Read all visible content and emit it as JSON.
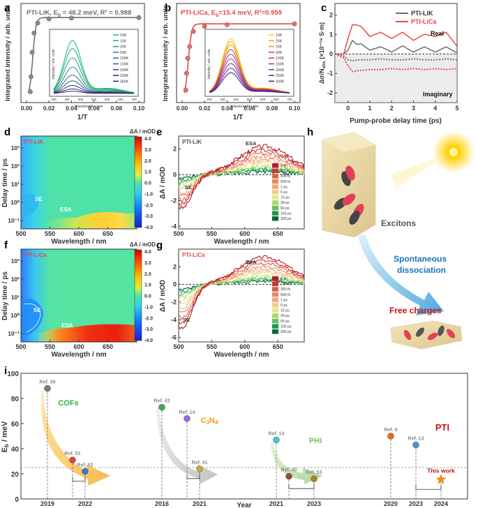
{
  "colors": {
    "li_k": "#6e6e6e",
    "li_ca": "#e8474a",
    "accent_blue": "#1c73b9",
    "accent_red": "#c41212",
    "cofs": "#2bb24c",
    "c3n4": "#f39800",
    "phi": "#7cc05c",
    "pti": "#c41212",
    "star": "#f08a1c"
  },
  "panel_labels": {
    "a": "a",
    "b": "b",
    "c": "c",
    "d": "d",
    "e": "e",
    "f": "f",
    "g": "g",
    "h": "h",
    "i": "i"
  },
  "chart_data": [
    {
      "id": "a",
      "type": "scatter",
      "title": "PTI-LiK, E_b = 48.2 meV, R² = 0.988",
      "title_parts": {
        "main": "PTI-LiK, E",
        "sub": "b",
        "rest": " = 48.2 meV, R² = 0.988"
      },
      "xlabel": "1/T",
      "ylabel": "Integrated intensity / arb. units",
      "xlim": [
        0,
        0.1
      ],
      "xticks": [
        "0.00",
        "0.02",
        "0.04",
        "0.06",
        "0.08",
        "0.10"
      ],
      "x": [
        0.0033,
        0.004,
        0.005,
        0.0067,
        0.01,
        0.02,
        0.04,
        0.1
      ],
      "y": [
        0.08,
        0.26,
        0.55,
        0.78,
        0.9,
        0.95,
        0.96,
        0.965
      ],
      "inset": {
        "xlabel": "Wavelength / nm",
        "ylabel": "Intensity / arb. units",
        "xticks": [
          "400",
          "450",
          "500",
          "550",
          "600",
          "650",
          "700"
        ],
        "legend": [
          "10K",
          "15K",
          "25K",
          "50K",
          "100K",
          "150K",
          "200K",
          "250K",
          "300K"
        ],
        "series_colors": [
          "#00c05a",
          "#1aa870",
          "#2a9480",
          "#2f8086",
          "#306b86",
          "#2f5482",
          "#2e3b7a",
          "#2a2a6e",
          "#481a6a"
        ],
        "peak_nm": 470,
        "peaks": [
          0.92,
          0.78,
          0.62,
          0.46,
          0.32,
          0.22,
          0.14,
          0.08,
          0.04
        ]
      }
    },
    {
      "id": "b",
      "type": "scatter",
      "title": "PTI-LiCa, E_b=15.4 meV, R²=0.959",
      "title_parts": {
        "main": "PTI-LiCa, E",
        "sub": "b",
        "rest": "=15.4 meV, R²=0.959"
      },
      "xlabel": "1/T",
      "ylabel": "Integrated intensity / arb. units",
      "xlim": [
        0,
        0.1
      ],
      "xticks": [
        "0.00",
        "0.02",
        "0.04",
        "0.06",
        "0.08",
        "0.10"
      ],
      "x": [
        0.0033,
        0.004,
        0.005,
        0.0067,
        0.01,
        0.02,
        0.04,
        0.1
      ],
      "y": [
        0.1,
        0.3,
        0.48,
        0.62,
        0.8,
        0.86,
        0.88,
        0.89
      ],
      "inset": {
        "xlabel": "Wavelength / nm",
        "ylabel": "Intensity / arb. units",
        "xticks": [
          "400",
          "450",
          "500",
          "550",
          "600",
          "650",
          "700"
        ],
        "legend": [
          "10K",
          "15K",
          "25K",
          "50K",
          "100K",
          "150K",
          "200K",
          "250K",
          "300K"
        ],
        "series_colors": [
          "#f8d000",
          "#f0b000",
          "#e39a00",
          "#c8327a",
          "#b0358a",
          "#953090",
          "#7a2a8e",
          "#5a2288",
          "#2b1a7a"
        ],
        "peak_nm": 480,
        "peaks": [
          0.95,
          0.9,
          0.84,
          0.76,
          0.68,
          0.6,
          0.52,
          0.44,
          0.36
        ]
      }
    },
    {
      "id": "c",
      "type": "line",
      "xlabel": "Pump-probe delay time (ps)",
      "ylabel": "Δσ/N_abs (×10⁻¹⁸ S·m)",
      "ylabel_text": "Δσ/N",
      "ylabel_sub": "abs",
      "ylabel_tail": " (×10⁻¹⁸ S·m)",
      "xlim": [
        -0.6,
        5
      ],
      "ylim": [
        -2.5,
        2.6
      ],
      "xticks": [
        "0",
        "1",
        "2",
        "3",
        "4",
        "5"
      ],
      "yticks": [
        "-2",
        "-1",
        "0",
        "1",
        "2"
      ],
      "legend": [
        "PTI-LiK",
        "PTI-LiCa"
      ],
      "annotations": [
        "Real",
        "Imaginary"
      ],
      "series": [
        {
          "name": "PTI-LiK real",
          "x": [
            -0.6,
            -0.2,
            0,
            0.2,
            0.4,
            0.6,
            1,
            1.5,
            2,
            2.5,
            3,
            3.5,
            4,
            4.5,
            5
          ],
          "values": [
            0,
            0,
            0.2,
            0.7,
            0.6,
            0.4,
            0.3,
            0.25,
            0.2,
            0.3,
            0.2,
            0.25,
            0.2,
            0.25,
            0.15
          ]
        },
        {
          "name": "PTI-LiCa real",
          "x": [
            -0.6,
            -0.2,
            0,
            0.2,
            0.4,
            0.6,
            1,
            1.5,
            2,
            2.5,
            3,
            3.5,
            4,
            4.5,
            5
          ],
          "values": [
            0,
            0,
            0.8,
            1.5,
            1.6,
            1.3,
            1,
            1,
            0.9,
            1,
            0.8,
            0.9,
            1,
            1,
            0.5
          ]
        },
        {
          "name": "PTI-LiK imaginary",
          "x": [
            -0.6,
            -0.2,
            0,
            0.2,
            0.5,
            1,
            1.5,
            2,
            2.5,
            3,
            3.5,
            4,
            4.5,
            5
          ],
          "values": [
            0,
            -0.1,
            -0.3,
            -0.35,
            -0.3,
            -0.3,
            -0.25,
            -0.3,
            -0.3,
            -0.25,
            -0.3,
            -0.3,
            -0.25,
            -0.3
          ]
        },
        {
          "name": "PTI-LiCa imaginary",
          "x": [
            -0.6,
            -0.2,
            0,
            0.2,
            0.5,
            1,
            1.5,
            2,
            2.5,
            3,
            3.5,
            4,
            4.5,
            5
          ],
          "values": [
            0,
            -0.2,
            -0.6,
            -0.9,
            -0.85,
            -0.8,
            -0.8,
            -0.75,
            -0.8,
            -0.75,
            -0.8,
            -0.75,
            -0.8,
            -0.75
          ]
        }
      ]
    },
    {
      "id": "d",
      "type": "heatmap",
      "sample": "PTI-LiK",
      "xlabel": "Wavelength / nm",
      "ylabel": "Delay time / ps",
      "xlim": [
        500,
        700
      ],
      "xticks": [
        "500",
        "550",
        "600",
        "650"
      ],
      "yticks": [
        "10⁻¹",
        "10⁰",
        "10¹",
        "10²",
        "10³"
      ],
      "colorbar": {
        "title": "ΔA / mOD",
        "ticks": [
          "4.0",
          "3.0",
          "2.0",
          "1.0",
          "0.0",
          "-1.0",
          "-2.0",
          "-3.0",
          "-4.0"
        ],
        "range": [
          -4,
          4
        ]
      },
      "annotations": [
        "SE",
        "ESA"
      ]
    },
    {
      "id": "e",
      "type": "line",
      "sample": "PTI-LiK",
      "xlabel": "Wavelength / nm",
      "ylabel": "ΔA / mOD",
      "xlim": [
        500,
        690
      ],
      "ylim": [
        -4.2,
        3
      ],
      "xticks": [
        "500",
        "550",
        "600",
        "650"
      ],
      "yticks": [
        "-4",
        "-2",
        "0",
        "2"
      ],
      "annotations": [
        "ESA",
        "SE"
      ],
      "legend": [
        "6 fs",
        "150 fs",
        "300 fs",
        "600 fs",
        "1 ps",
        "5 ps",
        "15 ps",
        "30 ps",
        "60 ps",
        "150 ps",
        "300 ps"
      ],
      "series_colors": [
        "#b2182b",
        "#c8382f",
        "#d6604d",
        "#e48a60",
        "#f4a582",
        "#f5c98e",
        "#d9ef8b",
        "#a6d96a",
        "#66bd63",
        "#1a9850",
        "#006837"
      ],
      "amplitudes": [
        1,
        0.88,
        0.76,
        0.64,
        0.54,
        0.45,
        0.36,
        0.28,
        0.22,
        0.16,
        0.12
      ]
    },
    {
      "id": "f",
      "type": "heatmap",
      "sample": "PTI-LiCa",
      "xlabel": "Wavelength / nm",
      "ylabel": "Delay time / ps",
      "xlim": [
        500,
        700
      ],
      "xticks": [
        "500",
        "550",
        "600",
        "650"
      ],
      "yticks": [
        "10⁻¹",
        "10⁰",
        "10¹",
        "10²",
        "10³"
      ],
      "colorbar": {
        "title": "ΔA / mOD",
        "ticks": [
          "4.0",
          "3.0",
          "2.0",
          "1.0",
          "0.0",
          "-1.0",
          "-2.0",
          "-3.0",
          "-4.0"
        ],
        "range": [
          -4,
          4
        ]
      },
      "annotations": [
        "SE",
        "ESA"
      ]
    },
    {
      "id": "g",
      "type": "line",
      "sample": "PTI-LiCa",
      "xlabel": "Wavelength / nm",
      "ylabel": "ΔA / mOD",
      "xlim": [
        500,
        690
      ],
      "ylim": [
        -6.5,
        4
      ],
      "xticks": [
        "500",
        "550",
        "600",
        "650"
      ],
      "yticks": [
        "-6",
        "-4",
        "-2",
        "0",
        "2"
      ],
      "annotations": [
        "ESA",
        "SE"
      ],
      "legend": [
        "6 fs",
        "150 fs",
        "300 fs",
        "600 fs",
        "1 ps",
        "5 ps",
        "15 ps",
        "30 ps",
        "60 ps",
        "150 ps",
        "300 ps"
      ],
      "series_colors": [
        "#b2182b",
        "#c8382f",
        "#d6604d",
        "#e48a60",
        "#f4a582",
        "#f5c98e",
        "#d9ef8b",
        "#a6d96a",
        "#66bd63",
        "#1a9850",
        "#006837"
      ],
      "amplitudes": [
        1,
        0.88,
        0.76,
        0.64,
        0.54,
        0.45,
        0.36,
        0.28,
        0.22,
        0.16,
        0.12
      ]
    },
    {
      "id": "i",
      "type": "scatter",
      "xlabel": "Year",
      "ylabel": "E_b / meV",
      "ylabel_text": "E",
      "ylabel_sub": "b",
      "ylabel_tail": " / meV",
      "ylim": [
        0,
        100
      ],
      "yticks": [
        "0",
        "20",
        "40",
        "60",
        "80",
        "100"
      ],
      "reference_line": 25,
      "groups": [
        {
          "label": "COFs",
          "points": [
            {
              "ref": "Ref. 39",
              "value": 88,
              "year": "2019"
            },
            {
              "ref": "Ref. 51",
              "value": 31
            },
            {
              "ref": "Ref. 52",
              "value": 22,
              "year": "2022"
            }
          ]
        },
        {
          "label": "C3N4",
          "label_main": "C",
          "label_sub1": "3",
          "label_mid": "N",
          "label_sub2": "4",
          "points": [
            {
              "ref": "Ref. 42",
              "value": 73,
              "year": "2016"
            },
            {
              "ref": "Ref. 14",
              "value": 64
            },
            {
              "ref": "Ref. 41",
              "value": 24,
              "year": "2021"
            }
          ]
        },
        {
          "label": "PHI",
          "points": [
            {
              "ref": "Ref. 14",
              "value": 47,
              "year": "2021"
            },
            {
              "ref": "Ref. 40",
              "value": 18
            },
            {
              "ref": "Ref. 53",
              "value": 16,
              "year": "2023"
            }
          ]
        },
        {
          "label": "PTI",
          "points": [
            {
              "ref": "Ref. 8",
              "value": 50,
              "year": "2020"
            },
            {
              "ref": "Ref. 13",
              "value": 43,
              "year": "2023"
            },
            {
              "ref": "This work",
              "value": 15.4,
              "year": "2024"
            }
          ]
        }
      ]
    }
  ],
  "schematic": {
    "excitons": "Excitons",
    "dissociation_line1": "Spontaneous",
    "dissociation_line2": "dissociation",
    "free_charges": "Free charges"
  }
}
